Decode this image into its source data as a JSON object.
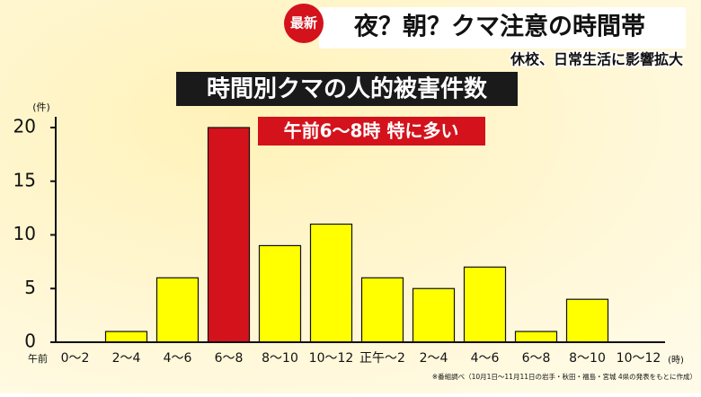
{
  "badge": "最新",
  "headline": "夜？朝？クマ注意の時間帯",
  "subheadline": "休校、日常生活に影響拡大",
  "chart_data": {
    "type": "bar",
    "title": "時間別クマの人的被害件数",
    "annotation": "午前6〜8時 特に多い",
    "y_unit": "(件)",
    "x_prefix": "午前",
    "x_unit": "(時)",
    "source": "※番組調べ（10月1日〜11月11日の岩手・秋田・福島・宮城 4県の発表をもとに作成）",
    "categories": [
      "0〜2",
      "2〜4",
      "4〜6",
      "6〜8",
      "8〜10",
      "10〜12",
      "正午〜2",
      "2〜4",
      "4〜6",
      "6〜8",
      "8〜10",
      "10〜12"
    ],
    "values": [
      0,
      1,
      6,
      20,
      9,
      11,
      6,
      5,
      7,
      1,
      4,
      0
    ],
    "colors": [
      "#ffff00",
      "#ffff00",
      "#ffff00",
      "#d3121c",
      "#ffff00",
      "#ffff00",
      "#ffff00",
      "#ffff00",
      "#ffff00",
      "#ffff00",
      "#ffff00",
      "#ffff00"
    ],
    "ylim": [
      0,
      20
    ],
    "yticks": [
      0,
      5,
      10,
      15,
      20
    ]
  }
}
